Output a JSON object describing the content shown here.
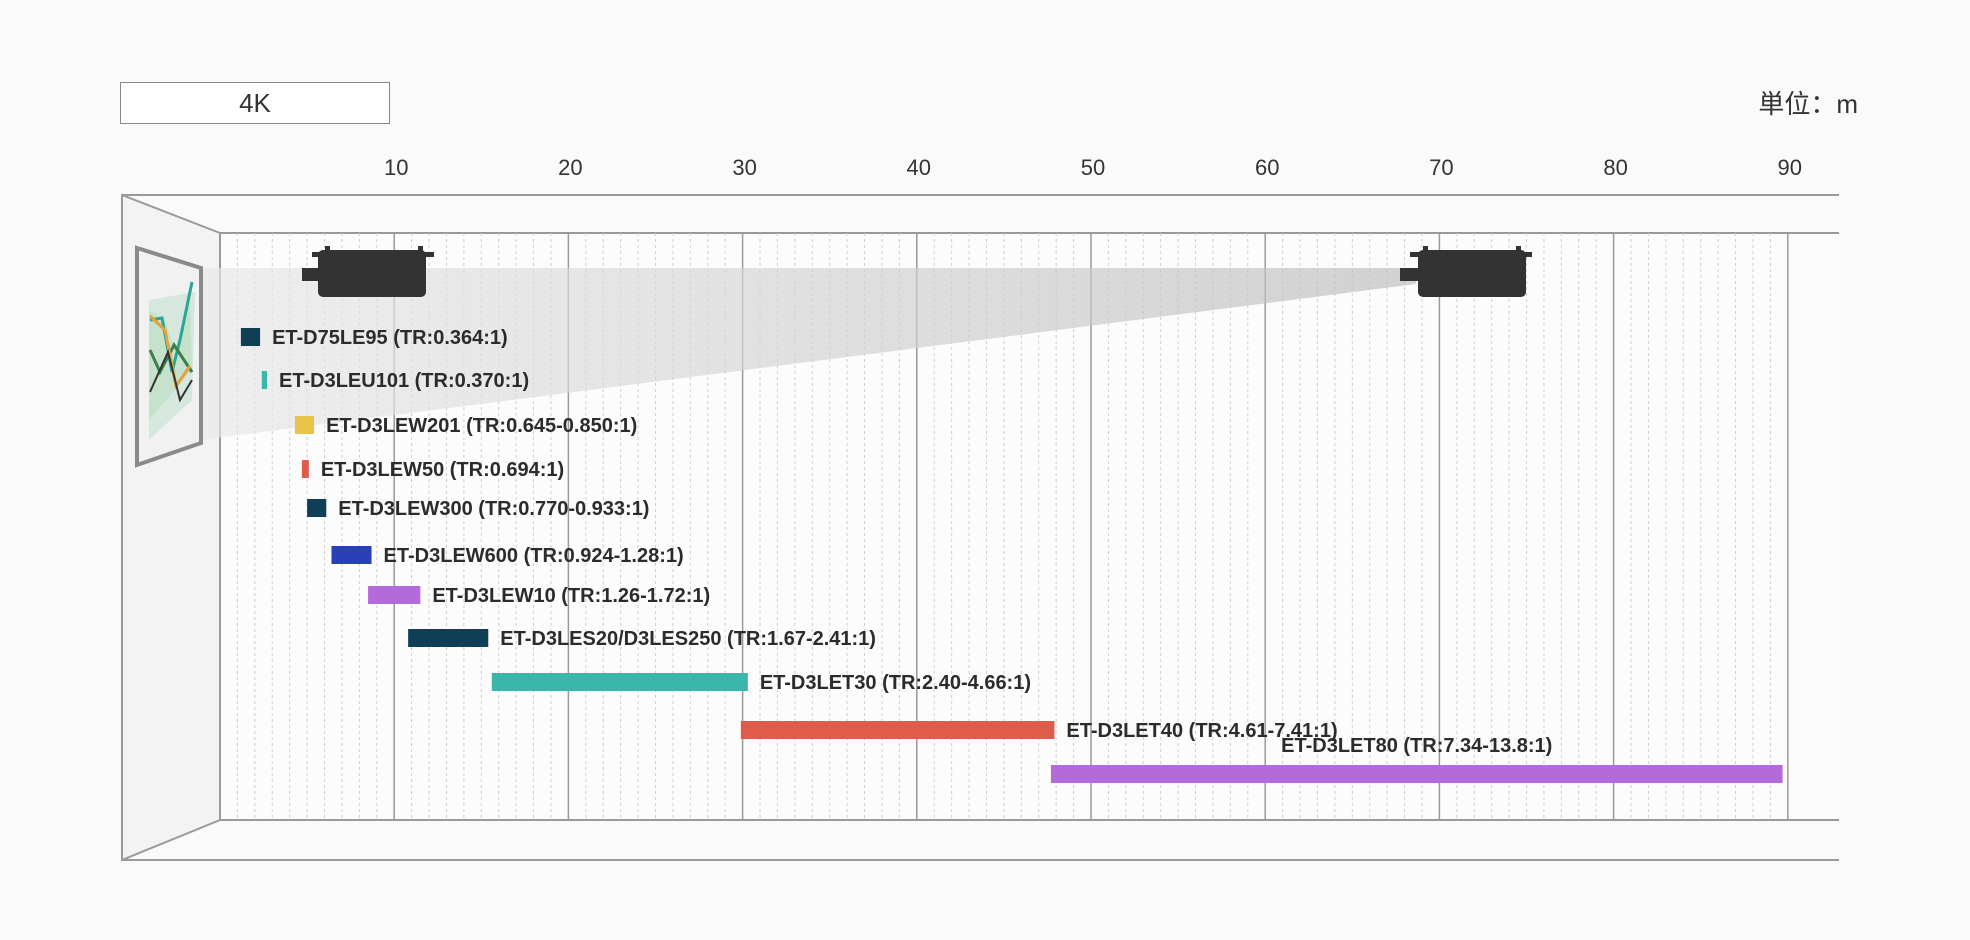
{
  "header": {
    "resolution_label": "4K",
    "unit_label": "単位：m"
  },
  "colors": {
    "navy": "#0f3f55",
    "teal": "#3ab7aa",
    "yellow": "#e8c44a",
    "red": "#e05c4a",
    "blue": "#2a40b8",
    "purple": "#b46adb"
  },
  "chart_data": {
    "type": "bar",
    "subtype": "floating-range",
    "xlim": [
      0,
      90
    ],
    "xticks": [
      10,
      20,
      30,
      40,
      50,
      60,
      70,
      80,
      90
    ],
    "grid": true,
    "series": [
      {
        "name": "ET-D75LE95 (TR:0.364:1)",
        "start": 1.2,
        "end": 2.3,
        "color": "#0f3f55",
        "thickness": 18
      },
      {
        "name": "ET-D3LEU101 (TR:0.370:1)",
        "start": 2.4,
        "end": 2.7,
        "color": "#3ab7aa",
        "thickness": 18
      },
      {
        "name": "ET-D3LEW201 (TR:0.645-0.850:1)",
        "start": 4.3,
        "end": 5.4,
        "color": "#e8c44a",
        "thickness": 18
      },
      {
        "name": "ET-D3LEW50 (TR:0.694:1)",
        "start": 4.7,
        "end": 5.1,
        "color": "#e05c4a",
        "thickness": 18
      },
      {
        "name": "ET-D3LEW300 (TR:0.770-0.933:1)",
        "start": 5.0,
        "end": 6.1,
        "color": "#0f3f55",
        "thickness": 18
      },
      {
        "name": "ET-D3LEW600 (TR:0.924-1.28:1)",
        "start": 6.4,
        "end": 8.7,
        "color": "#2a40b8",
        "thickness": 18
      },
      {
        "name": "ET-D3LEW10 (TR:1.26-1.72:1)",
        "start": 8.5,
        "end": 11.5,
        "color": "#b46adb",
        "thickness": 18
      },
      {
        "name": "ET-D3LES20/D3LES250 (TR:1.67-2.41:1)",
        "start": 10.8,
        "end": 15.4,
        "color": "#0f3f55",
        "thickness": 18
      },
      {
        "name": "ET-D3LET30 (TR:2.40-4.66:1)",
        "start": 15.6,
        "end": 30.3,
        "color": "#3ab7aa",
        "thickness": 18
      },
      {
        "name": "ET-D3LET40 (TR:4.61-7.41:1)",
        "start": 29.9,
        "end": 47.9,
        "color": "#e05c4a",
        "thickness": 18
      },
      {
        "name": "ET-D3LET80 (TR:7.34-13.8:1)",
        "start": 47.7,
        "end": 89.7,
        "color": "#b46adb",
        "thickness": 18,
        "label_above": true
      }
    ]
  }
}
